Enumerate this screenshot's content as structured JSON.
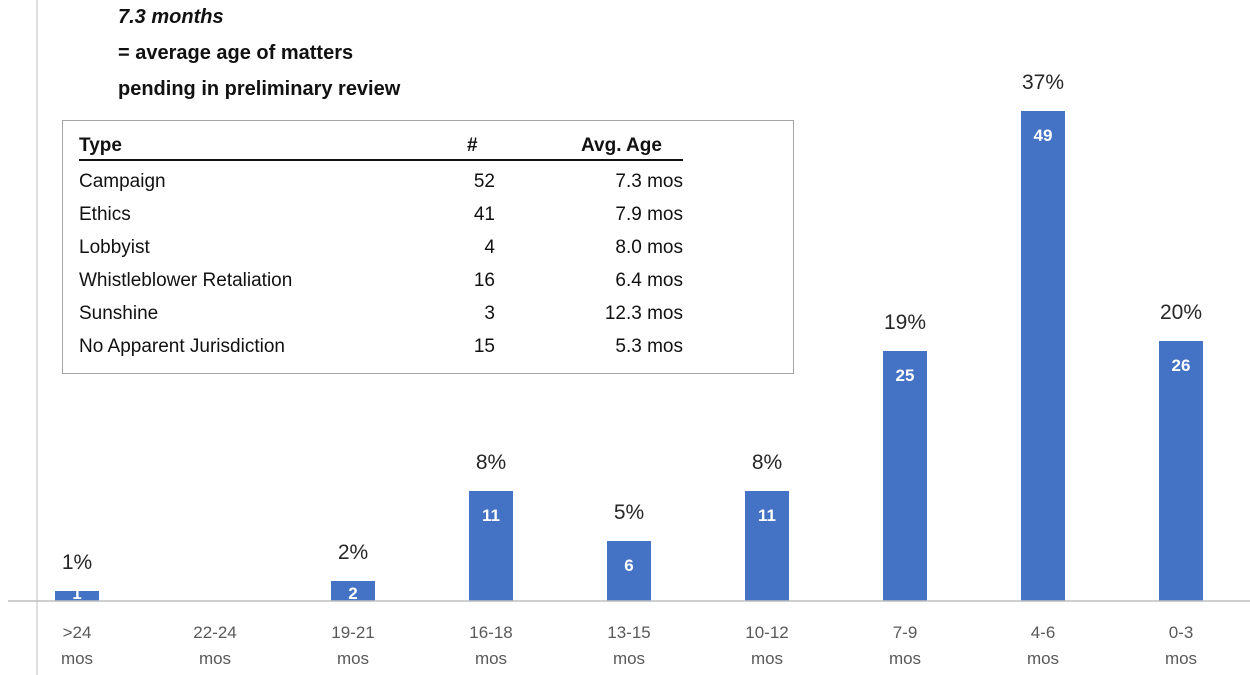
{
  "heading": {
    "line1": "7.3 months",
    "line2": "= average age of matters",
    "line3": "pending in preliminary review"
  },
  "table": {
    "headers": {
      "type": "Type",
      "count": "#",
      "avg_age": "Avg. Age"
    },
    "rows": [
      {
        "type": "Campaign",
        "count": "52",
        "avg_age": "7.3 mos"
      },
      {
        "type": "Ethics",
        "count": "41",
        "avg_age": "7.9  mos"
      },
      {
        "type": "Lobbyist",
        "count": "4",
        "avg_age": "8.0 mos"
      },
      {
        "type": "Whistleblower Retaliation",
        "count": "16",
        "avg_age": "6.4 mos"
      },
      {
        "type": "Sunshine",
        "count": "3",
        "avg_age": "12.3 mos"
      },
      {
        "type": "No Apparent Jurisdiction",
        "count": "15",
        "avg_age": "5.3  mos"
      }
    ]
  },
  "chart_data": {
    "type": "bar",
    "categories": [
      ">24 mos",
      "22-24 mos",
      "19-21 mos",
      "16-18 mos",
      "13-15 mos",
      "10-12 mos",
      "7-9 mos",
      "4-6 mos",
      "0-3 mos"
    ],
    "values": [
      1,
      0,
      2,
      11,
      6,
      11,
      25,
      49,
      26
    ],
    "value_labels": [
      "1",
      "",
      "2",
      "11",
      "6",
      "11",
      "25",
      "49",
      "26"
    ],
    "percent_labels": [
      "1%",
      "",
      "2%",
      "8%",
      "5%",
      "8%",
      "19%",
      "37%",
      "20%"
    ],
    "ylim": [
      0,
      54
    ],
    "bar_color": "#4472c4",
    "axis_color": "#bfbfbf",
    "grid": false,
    "title": "",
    "xlabel": "",
    "ylabel": ""
  }
}
